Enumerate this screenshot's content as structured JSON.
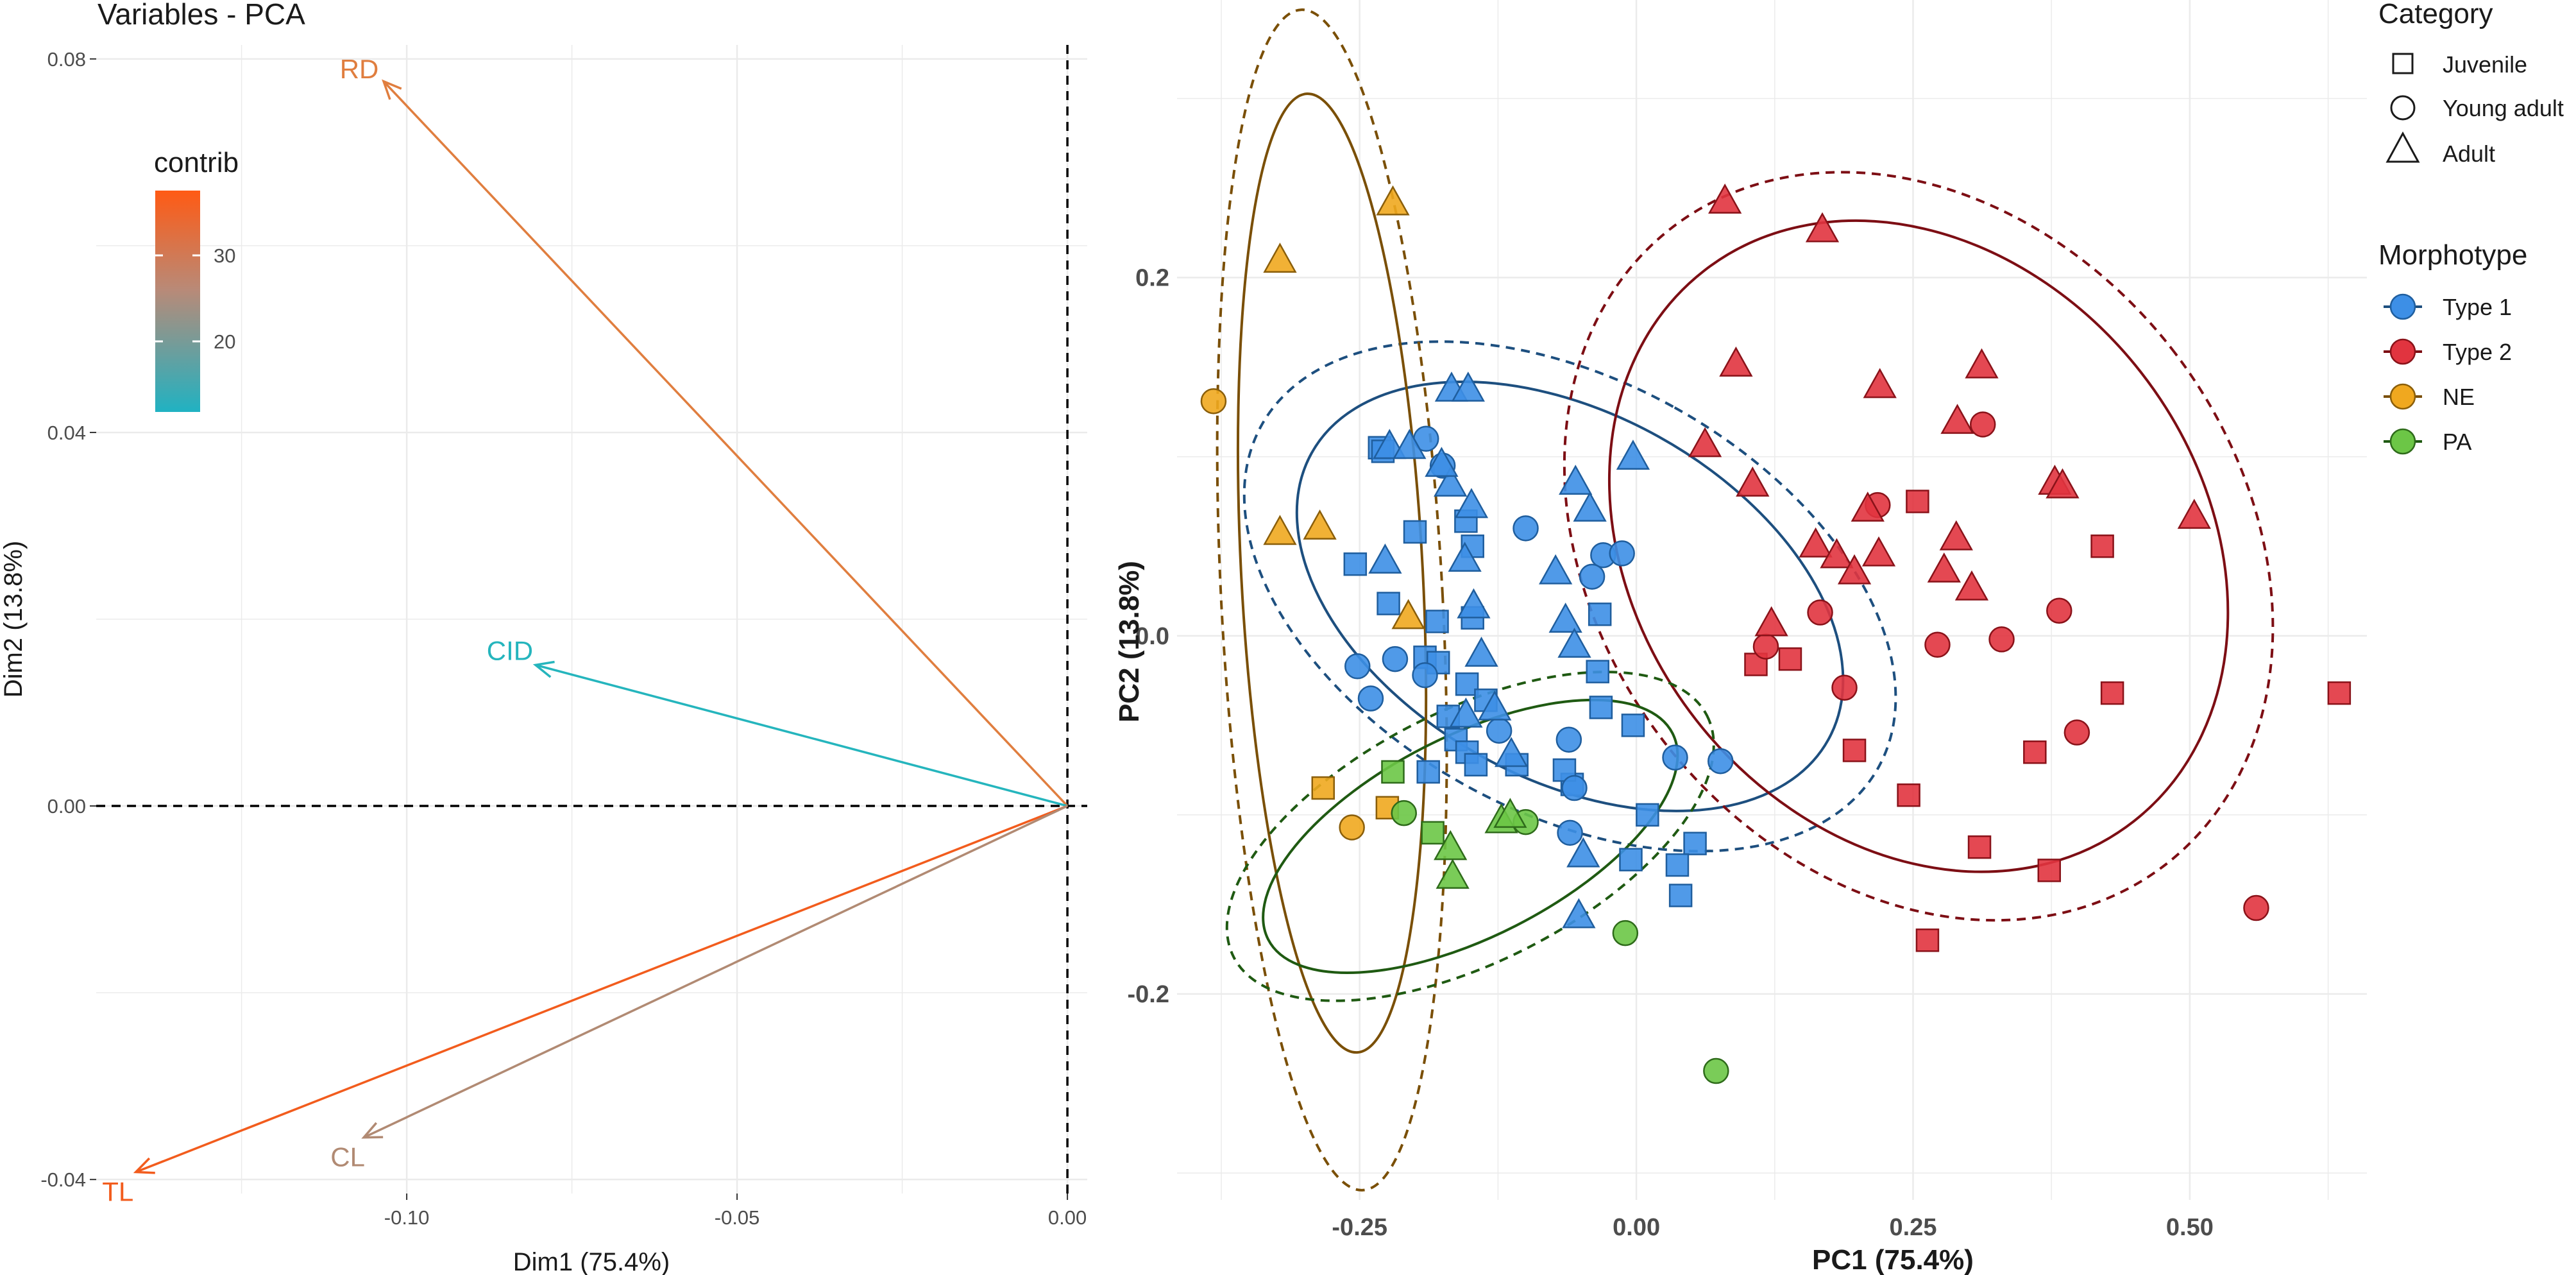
{
  "chart_data": [
    {
      "type": "biplot",
      "title": "Variables - PCA",
      "xlabel": "Dim1 (75.4%)",
      "ylabel": "Dim2 (13.8%)",
      "xlim": [
        -0.147,
        0.003
      ],
      "ylim": [
        -0.0415,
        0.0815
      ],
      "x_ticks": [
        "-0.10",
        "-0.05",
        "0.00"
      ],
      "y_ticks": [
        "0.08",
        "0.04",
        "0.00",
        "-0.04"
      ],
      "legend": {
        "title": "contrib",
        "ticks": [
          "30",
          "20"
        ],
        "range": [
          12,
          36
        ],
        "low_color": "#20b2c2",
        "high_color": "#ff5a14"
      },
      "vectors": [
        {
          "name": "RD",
          "x": -0.1035,
          "y": 0.0776,
          "contrib": 30,
          "color": "#e07e3f"
        },
        {
          "name": "CID",
          "x": -0.0805,
          "y": 0.0151,
          "contrib": 13,
          "color": "#25b5bd"
        },
        {
          "name": "TL",
          "x": -0.141,
          "y": -0.0392,
          "contrib": 36,
          "color": "#f25c1d"
        },
        {
          "name": "CL",
          "x": -0.1065,
          "y": -0.0355,
          "contrib": 24,
          "color": "#b18a73"
        }
      ]
    },
    {
      "type": "scatter",
      "xlabel": "PC1 (75.4%)",
      "ylabel": "PC2 (13.8%)",
      "xlim": [
        -0.415,
        0.66
      ],
      "ylim": [
        -0.315,
        0.355
      ],
      "x_ticks": [
        "-0.25",
        "0.00",
        "0.25",
        "0.50"
      ],
      "y_ticks": [
        "0.2",
        "0.0",
        "-0.2"
      ],
      "legend_category": {
        "title": "Category",
        "items": [
          "Juvenile",
          "Young adult",
          "Adult"
        ]
      },
      "legend_morphotype": {
        "title": "Morphotype",
        "items": [
          {
            "name": "Type 1",
            "fill": "#3d8fe6",
            "stroke": "#1f5e9e",
            "ellipse": "#1d4f7f"
          },
          {
            "name": "Type 2",
            "fill": "#e1343f",
            "stroke": "#8a1219",
            "ellipse": "#7d0e14"
          },
          {
            "name": "NE",
            "fill": "#f0a81f",
            "stroke": "#8a5e0a",
            "ellipse": "#7a4f06"
          },
          {
            "name": "PA",
            "fill": "#6cc646",
            "stroke": "#2e6b1a",
            "ellipse": "#1f5a12"
          }
        ]
      },
      "ellipses": [
        {
          "group": "Type 1",
          "level": "inner",
          "cx": -0.06,
          "cy": 0.022,
          "rx": 0.165,
          "ry": 0.165,
          "angle": -61,
          "dashed": false
        },
        {
          "group": "Type 1",
          "level": "outer",
          "cx": -0.06,
          "cy": 0.022,
          "rx": 0.195,
          "ry": 0.197,
          "angle": -61,
          "dashed": true
        },
        {
          "group": "Type 2",
          "level": "inner",
          "cx": 0.255,
          "cy": 0.05,
          "rx": 0.255,
          "ry": 0.195,
          "angle": -38,
          "dashed": false
        },
        {
          "group": "Type 2",
          "level": "outer",
          "cx": 0.255,
          "cy": 0.05,
          "rx": 0.29,
          "ry": 0.225,
          "angle": -38,
          "dashed": true
        },
        {
          "group": "NE",
          "level": "inner",
          "cx": -0.275,
          "cy": 0.035,
          "rx": 0.082,
          "ry": 0.268,
          "angle": -3,
          "dashed": false
        },
        {
          "group": "NE",
          "level": "outer",
          "cx": -0.275,
          "cy": 0.02,
          "rx": 0.1,
          "ry": 0.33,
          "angle": -3,
          "dashed": true
        },
        {
          "group": "PA",
          "level": "inner",
          "cx": -0.15,
          "cy": -0.112,
          "rx": 0.205,
          "ry": 0.056,
          "angle": -27,
          "dashed": false
        },
        {
          "group": "PA",
          "level": "outer",
          "cx": -0.15,
          "cy": -0.112,
          "rx": 0.24,
          "ry": 0.07,
          "angle": -27,
          "dashed": true
        }
      ],
      "series": [
        {
          "name": "Type 1",
          "points": [
            [
              -0.232,
              0.105,
              "s"
            ],
            [
              -0.229,
              0.103,
              "s"
            ],
            [
              -0.254,
              0.04,
              "s"
            ],
            [
              -0.224,
              0.018,
              "s"
            ],
            [
              -0.2,
              0.058,
              "s"
            ],
            [
              -0.154,
              0.064,
              "s"
            ],
            [
              -0.148,
              0.05,
              "s"
            ],
            [
              -0.18,
              0.008,
              "s"
            ],
            [
              -0.191,
              -0.012,
              "s"
            ],
            [
              -0.179,
              -0.015,
              "s"
            ],
            [
              -0.153,
              -0.027,
              "s"
            ],
            [
              -0.136,
              -0.036,
              "s"
            ],
            [
              -0.163,
              -0.058,
              "s"
            ],
            [
              -0.153,
              -0.065,
              "s"
            ],
            [
              -0.188,
              -0.076,
              "s"
            ],
            [
              -0.145,
              -0.072,
              "s"
            ],
            [
              -0.108,
              -0.072,
              "s"
            ],
            [
              -0.058,
              -0.083,
              "s"
            ],
            [
              -0.032,
              -0.04,
              "s"
            ],
            [
              -0.003,
              -0.05,
              "s"
            ],
            [
              -0.033,
              0.012,
              "s"
            ],
            [
              -0.035,
              -0.02,
              "s"
            ],
            [
              0.01,
              -0.1,
              "s"
            ],
            [
              0.053,
              -0.116,
              "s"
            ],
            [
              0.037,
              -0.128,
              "s"
            ],
            [
              -0.005,
              -0.125,
              "s"
            ],
            [
              0.04,
              -0.145,
              "s"
            ],
            [
              -0.065,
              -0.075,
              "s"
            ],
            [
              -0.17,
              -0.045,
              "s"
            ],
            [
              -0.148,
              0.01,
              "s"
            ],
            [
              -0.19,
              0.11,
              "c"
            ],
            [
              -0.175,
              0.095,
              "c"
            ],
            [
              -0.1,
              0.06,
              "c"
            ],
            [
              -0.03,
              0.045,
              "c"
            ],
            [
              -0.013,
              0.046,
              "c"
            ],
            [
              -0.04,
              0.033,
              "c"
            ],
            [
              -0.24,
              -0.035,
              "c"
            ],
            [
              -0.252,
              -0.017,
              "c"
            ],
            [
              -0.218,
              -0.013,
              "c"
            ],
            [
              -0.191,
              -0.022,
              "c"
            ],
            [
              -0.124,
              -0.053,
              "c"
            ],
            [
              -0.061,
              -0.058,
              "c"
            ],
            [
              -0.056,
              -0.085,
              "c"
            ],
            [
              0.035,
              -0.068,
              "c"
            ],
            [
              0.076,
              -0.07,
              "c"
            ],
            [
              -0.06,
              -0.11,
              "c"
            ],
            [
              -0.167,
              0.138,
              "t"
            ],
            [
              -0.152,
              0.138,
              "t"
            ],
            [
              -0.223,
              0.106,
              "t"
            ],
            [
              -0.205,
              0.106,
              "t"
            ],
            [
              -0.168,
              0.085,
              "t"
            ],
            [
              -0.149,
              0.073,
              "t"
            ],
            [
              -0.055,
              0.086,
              "t"
            ],
            [
              -0.042,
              0.071,
              "t"
            ],
            [
              -0.003,
              0.1,
              "t"
            ],
            [
              -0.227,
              0.042,
              "t"
            ],
            [
              -0.155,
              0.043,
              "t"
            ],
            [
              -0.147,
              0.017,
              "t"
            ],
            [
              -0.073,
              0.036,
              "t"
            ],
            [
              -0.064,
              0.009,
              "t"
            ],
            [
              -0.056,
              -0.005,
              "t"
            ],
            [
              -0.128,
              -0.04,
              "t"
            ],
            [
              -0.113,
              -0.066,
              "t"
            ],
            [
              -0.154,
              -0.044,
              "t"
            ],
            [
              -0.048,
              -0.122,
              "t"
            ],
            [
              -0.052,
              -0.156,
              "t"
            ],
            [
              -0.176,
              0.096,
              "t"
            ],
            [
              -0.14,
              -0.01,
              "t"
            ]
          ]
        },
        {
          "name": "Type 2",
          "points": [
            [
              0.108,
              -0.016,
              "s"
            ],
            [
              0.139,
              -0.013,
              "s"
            ],
            [
              0.254,
              0.075,
              "s"
            ],
            [
              0.421,
              0.05,
              "s"
            ],
            [
              0.43,
              -0.032,
              "s"
            ],
            [
              0.197,
              -0.064,
              "s"
            ],
            [
              0.246,
              -0.089,
              "s"
            ],
            [
              0.36,
              -0.065,
              "s"
            ],
            [
              0.31,
              -0.118,
              "s"
            ],
            [
              0.373,
              -0.131,
              "s"
            ],
            [
              0.263,
              -0.17,
              "s"
            ],
            [
              0.635,
              -0.032,
              "s"
            ],
            [
              0.313,
              0.118,
              "c"
            ],
            [
              0.218,
              0.073,
              "c"
            ],
            [
              0.166,
              0.013,
              "c"
            ],
            [
              0.117,
              -0.006,
              "c"
            ],
            [
              0.33,
              -0.002,
              "c"
            ],
            [
              0.272,
              -0.005,
              "c"
            ],
            [
              0.382,
              0.014,
              "c"
            ],
            [
              0.398,
              -0.054,
              "c"
            ],
            [
              0.188,
              -0.029,
              "c"
            ],
            [
              0.56,
              -0.152,
              "c"
            ],
            [
              0.09,
              0.152,
              "t"
            ],
            [
              0.22,
              0.14,
              "t"
            ],
            [
              0.312,
              0.151,
              "t"
            ],
            [
              0.29,
              0.12,
              "t"
            ],
            [
              0.062,
              0.107,
              "t"
            ],
            [
              0.105,
              0.085,
              "t"
            ],
            [
              0.162,
              0.051,
              "t"
            ],
            [
              0.181,
              0.045,
              "t"
            ],
            [
              0.209,
              0.071,
              "t"
            ],
            [
              0.219,
              0.046,
              "t"
            ],
            [
              0.289,
              0.055,
              "t"
            ],
            [
              0.278,
              0.037,
              "t"
            ],
            [
              0.303,
              0.027,
              "t"
            ],
            [
              0.378,
              0.086,
              "t"
            ],
            [
              0.504,
              0.067,
              "t"
            ],
            [
              0.122,
              0.007,
              "t"
            ],
            [
              0.197,
              0.036,
              "t"
            ],
            [
              0.168,
              0.227,
              "t"
            ],
            [
              0.08,
              0.243,
              "t"
            ],
            [
              0.385,
              0.084,
              "t"
            ]
          ]
        },
        {
          "name": "NE",
          "points": [
            [
              -0.283,
              -0.085,
              "s"
            ],
            [
              -0.225,
              -0.096,
              "s"
            ],
            [
              -0.382,
              0.131,
              "c"
            ],
            [
              -0.257,
              -0.107,
              "c"
            ],
            [
              -0.322,
              0.21,
              "t"
            ],
            [
              -0.22,
              0.242,
              "t"
            ],
            [
              -0.322,
              0.058,
              "t"
            ],
            [
              -0.286,
              0.061,
              "t"
            ],
            [
              -0.206,
              0.011,
              "t"
            ]
          ]
        },
        {
          "name": "PA",
          "points": [
            [
              -0.22,
              -0.076,
              "s"
            ],
            [
              -0.184,
              -0.11,
              "s"
            ],
            [
              -0.21,
              -0.099,
              "c"
            ],
            [
              -0.1,
              -0.104,
              "c"
            ],
            [
              -0.01,
              -0.166,
              "c"
            ],
            [
              0.072,
              -0.243,
              "c"
            ],
            [
              -0.168,
              -0.118,
              "t"
            ],
            [
              -0.166,
              -0.134,
              "t"
            ],
            [
              -0.122,
              -0.103,
              "t"
            ],
            [
              -0.114,
              -0.1,
              "t"
            ]
          ]
        }
      ]
    }
  ]
}
